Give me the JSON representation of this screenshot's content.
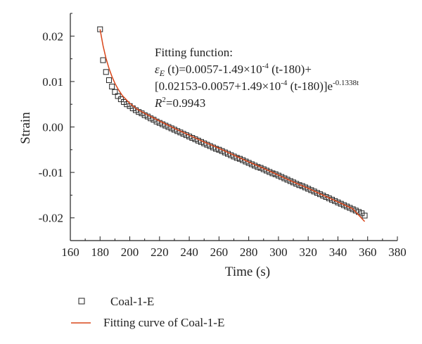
{
  "chart_data": {
    "type": "scatter",
    "xlabel": "Time (s)",
    "ylabel": "Strain",
    "xlim": [
      160,
      380
    ],
    "ylim": [
      -0.025,
      0.025
    ],
    "x_ticks": [
      "160",
      "180",
      "200",
      "220",
      "240",
      "260",
      "280",
      "300",
      "320",
      "340",
      "360",
      "380"
    ],
    "y_ticks": [
      "0.02",
      "0.01",
      "0.00",
      "-0.01",
      "-0.02"
    ],
    "grid": false,
    "legend_position": "bottom-left, below plot",
    "annotation": {
      "line1": "Fitting function:",
      "line2_sym": "ε",
      "line2_sub": "E",
      "line2_rest": " (t)=0.0057-1.49×10",
      "line2_exp": "-4",
      "line2_tail": " (t-180)+",
      "line3_main": "[0.02153-0.0057+1.49×10",
      "line3_exp1": "-4",
      "line3_mid": " (t-180)]e",
      "line3_exp2": "-0.1338t",
      "line4_sym": "R",
      "line4_exp": "2",
      "line4_rest": "=0.9943"
    },
    "series": [
      {
        "name": "Coal-1-E",
        "marker": "open-square",
        "color": "#222222",
        "x": [
          180,
          182,
          184,
          186,
          188,
          190,
          192,
          194,
          196,
          198,
          200,
          202,
          204,
          206,
          208,
          210,
          212,
          214,
          216,
          218,
          220,
          222,
          224,
          226,
          228,
          230,
          232,
          234,
          236,
          238,
          240,
          242,
          244,
          246,
          248,
          250,
          252,
          254,
          256,
          258,
          260,
          262,
          264,
          266,
          268,
          270,
          272,
          274,
          276,
          278,
          280,
          282,
          284,
          286,
          288,
          290,
          292,
          294,
          296,
          298,
          300,
          302,
          304,
          306,
          308,
          310,
          312,
          314,
          316,
          318,
          320,
          322,
          324,
          326,
          328,
          330,
          332,
          334,
          336,
          338,
          340,
          342,
          344,
          346,
          348,
          350,
          352,
          354,
          356,
          358
        ],
        "y": [
          0.0215,
          0.0147,
          0.0121,
          0.0103,
          0.0089,
          0.0077,
          0.0068,
          0.0061,
          0.0055,
          0.005,
          0.0046,
          0.0041,
          0.0037,
          0.0033,
          0.003,
          0.0026,
          0.0023,
          0.0019,
          0.0016,
          0.0012,
          0.0009,
          0.0006,
          0.0003,
          0.0,
          -0.0003,
          -0.0006,
          -0.0009,
          -0.0012,
          -0.0015,
          -0.0018,
          -0.0021,
          -0.0024,
          -0.0027,
          -0.003,
          -0.0033,
          -0.0036,
          -0.0039,
          -0.0042,
          -0.0045,
          -0.0048,
          -0.005,
          -0.0053,
          -0.0056,
          -0.0059,
          -0.0062,
          -0.0065,
          -0.0068,
          -0.007,
          -0.0073,
          -0.0076,
          -0.0079,
          -0.0082,
          -0.0085,
          -0.0088,
          -0.009,
          -0.0093,
          -0.0096,
          -0.0099,
          -0.0102,
          -0.0104,
          -0.0107,
          -0.011,
          -0.0113,
          -0.0116,
          -0.0119,
          -0.0122,
          -0.0125,
          -0.0128,
          -0.013,
          -0.0133,
          -0.0136,
          -0.0139,
          -0.0142,
          -0.0145,
          -0.0148,
          -0.0151,
          -0.0154,
          -0.0157,
          -0.016,
          -0.0163,
          -0.0166,
          -0.0169,
          -0.0172,
          -0.0175,
          -0.0178,
          -0.0181,
          -0.0184,
          -0.0187,
          -0.019,
          -0.0195
        ]
      },
      {
        "name": "Fitting curve of Coal-1-E",
        "marker": "line",
        "color": "#d9461a",
        "x": [
          180,
          182,
          184,
          186,
          188,
          190,
          192,
          195,
          200,
          205,
          210,
          220,
          230,
          240,
          250,
          260,
          270,
          280,
          290,
          300,
          310,
          320,
          330,
          340,
          350,
          358
        ],
        "y": [
          0.0215,
          0.0179,
          0.0151,
          0.0129,
          0.0111,
          0.0096,
          0.0084,
          0.0069,
          0.0052,
          0.0039,
          0.003,
          0.0013,
          -0.0003,
          -0.0018,
          -0.0033,
          -0.0047,
          -0.0062,
          -0.0077,
          -0.0091,
          -0.0106,
          -0.0121,
          -0.0135,
          -0.015,
          -0.0165,
          -0.018,
          -0.0208
        ]
      }
    ]
  }
}
